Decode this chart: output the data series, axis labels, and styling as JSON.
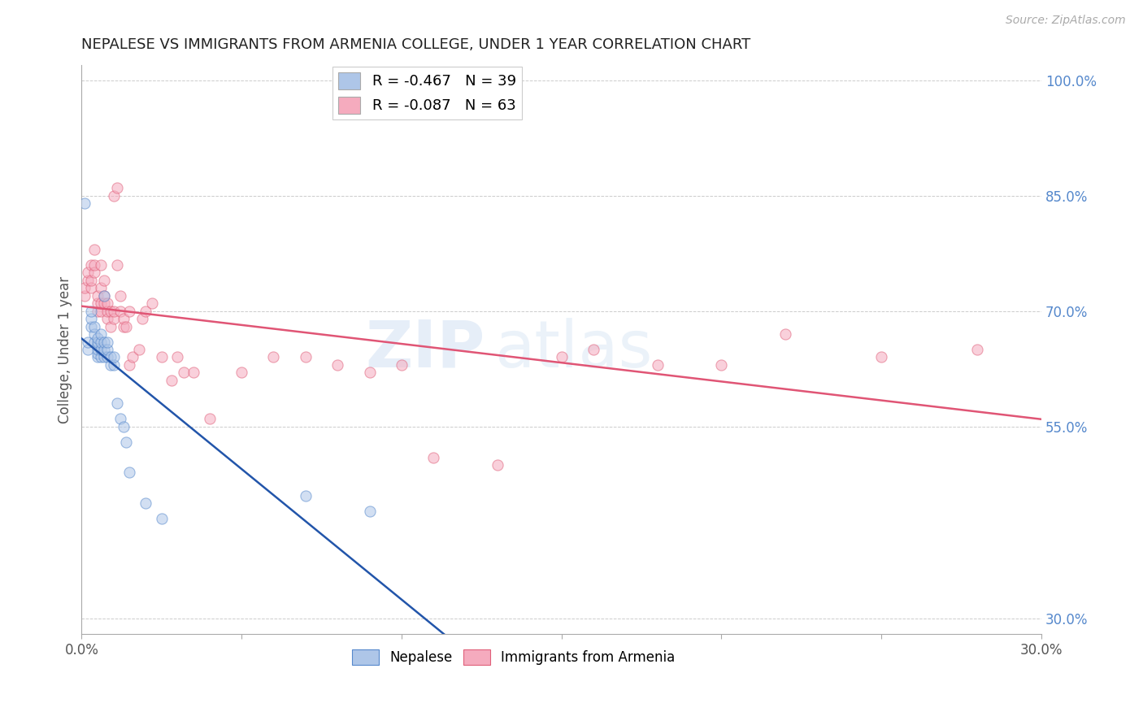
{
  "title": "NEPALESE VS IMMIGRANTS FROM ARMENIA COLLEGE, UNDER 1 YEAR CORRELATION CHART",
  "source": "Source: ZipAtlas.com",
  "ylabel": "College, Under 1 year",
  "xlim": [
    0.0,
    0.3
  ],
  "ylim": [
    0.28,
    1.02
  ],
  "xticks": [
    0.0,
    0.05,
    0.1,
    0.15,
    0.2,
    0.25,
    0.3
  ],
  "xticklabels": [
    "0.0%",
    "",
    "",
    "",
    "",
    "",
    "30.0%"
  ],
  "yticks_right": [
    0.3,
    0.55,
    0.7,
    0.85,
    1.0
  ],
  "ytick_labels_right": [
    "30.0%",
    "55.0%",
    "70.0%",
    "85.0%",
    "100.0%"
  ],
  "legend_entries": [
    {
      "label": "R = -0.467   N = 39",
      "color": "#aec6e8"
    },
    {
      "label": "R = -0.087   N = 63",
      "color": "#f5abbe"
    }
  ],
  "nepalese_color": "#aec6e8",
  "nepalese_edge": "#5588cc",
  "armenia_color": "#f5abbe",
  "armenia_edge": "#e0607a",
  "trend_nepalese_color": "#2255aa",
  "trend_armenia_color": "#e05575",
  "background_color": "#ffffff",
  "grid_color": "#cccccc",
  "title_color": "#222222",
  "axis_label_color": "#555555",
  "right_tick_color": "#5588cc",
  "nepalese_x": [
    0.001,
    0.002,
    0.002,
    0.003,
    0.003,
    0.003,
    0.004,
    0.004,
    0.004,
    0.005,
    0.005,
    0.005,
    0.005,
    0.005,
    0.005,
    0.006,
    0.006,
    0.006,
    0.006,
    0.007,
    0.007,
    0.007,
    0.007,
    0.008,
    0.008,
    0.008,
    0.009,
    0.009,
    0.01,
    0.01,
    0.011,
    0.012,
    0.013,
    0.014,
    0.015,
    0.02,
    0.025,
    0.07,
    0.09
  ],
  "nepalese_y": [
    0.84,
    0.65,
    0.66,
    0.68,
    0.69,
    0.7,
    0.66,
    0.67,
    0.68,
    0.64,
    0.645,
    0.65,
    0.655,
    0.66,
    0.665,
    0.64,
    0.65,
    0.66,
    0.67,
    0.64,
    0.65,
    0.66,
    0.72,
    0.64,
    0.65,
    0.66,
    0.63,
    0.64,
    0.63,
    0.64,
    0.58,
    0.56,
    0.55,
    0.53,
    0.49,
    0.45,
    0.43,
    0.46,
    0.44
  ],
  "armenia_x": [
    0.001,
    0.001,
    0.002,
    0.002,
    0.003,
    0.003,
    0.003,
    0.004,
    0.004,
    0.004,
    0.005,
    0.005,
    0.005,
    0.006,
    0.006,
    0.006,
    0.006,
    0.007,
    0.007,
    0.007,
    0.008,
    0.008,
    0.008,
    0.009,
    0.009,
    0.01,
    0.01,
    0.01,
    0.011,
    0.011,
    0.012,
    0.012,
    0.013,
    0.013,
    0.014,
    0.015,
    0.015,
    0.016,
    0.018,
    0.019,
    0.02,
    0.022,
    0.025,
    0.028,
    0.03,
    0.032,
    0.035,
    0.04,
    0.05,
    0.06,
    0.07,
    0.08,
    0.09,
    0.1,
    0.11,
    0.13,
    0.15,
    0.16,
    0.18,
    0.2,
    0.22,
    0.25,
    0.28
  ],
  "armenia_y": [
    0.72,
    0.73,
    0.74,
    0.75,
    0.73,
    0.74,
    0.76,
    0.75,
    0.76,
    0.78,
    0.7,
    0.71,
    0.72,
    0.7,
    0.71,
    0.73,
    0.76,
    0.71,
    0.72,
    0.74,
    0.69,
    0.7,
    0.71,
    0.68,
    0.7,
    0.69,
    0.7,
    0.85,
    0.86,
    0.76,
    0.7,
    0.72,
    0.68,
    0.69,
    0.68,
    0.7,
    0.63,
    0.64,
    0.65,
    0.69,
    0.7,
    0.71,
    0.64,
    0.61,
    0.64,
    0.62,
    0.62,
    0.56,
    0.62,
    0.64,
    0.64,
    0.63,
    0.62,
    0.63,
    0.51,
    0.5,
    0.64,
    0.65,
    0.63,
    0.63,
    0.67,
    0.64,
    0.65
  ],
  "watermark_zip": "ZIP",
  "watermark_atlas": "atlas",
  "marker_size": 90,
  "marker_alpha": 0.55,
  "line_width": 1.8
}
